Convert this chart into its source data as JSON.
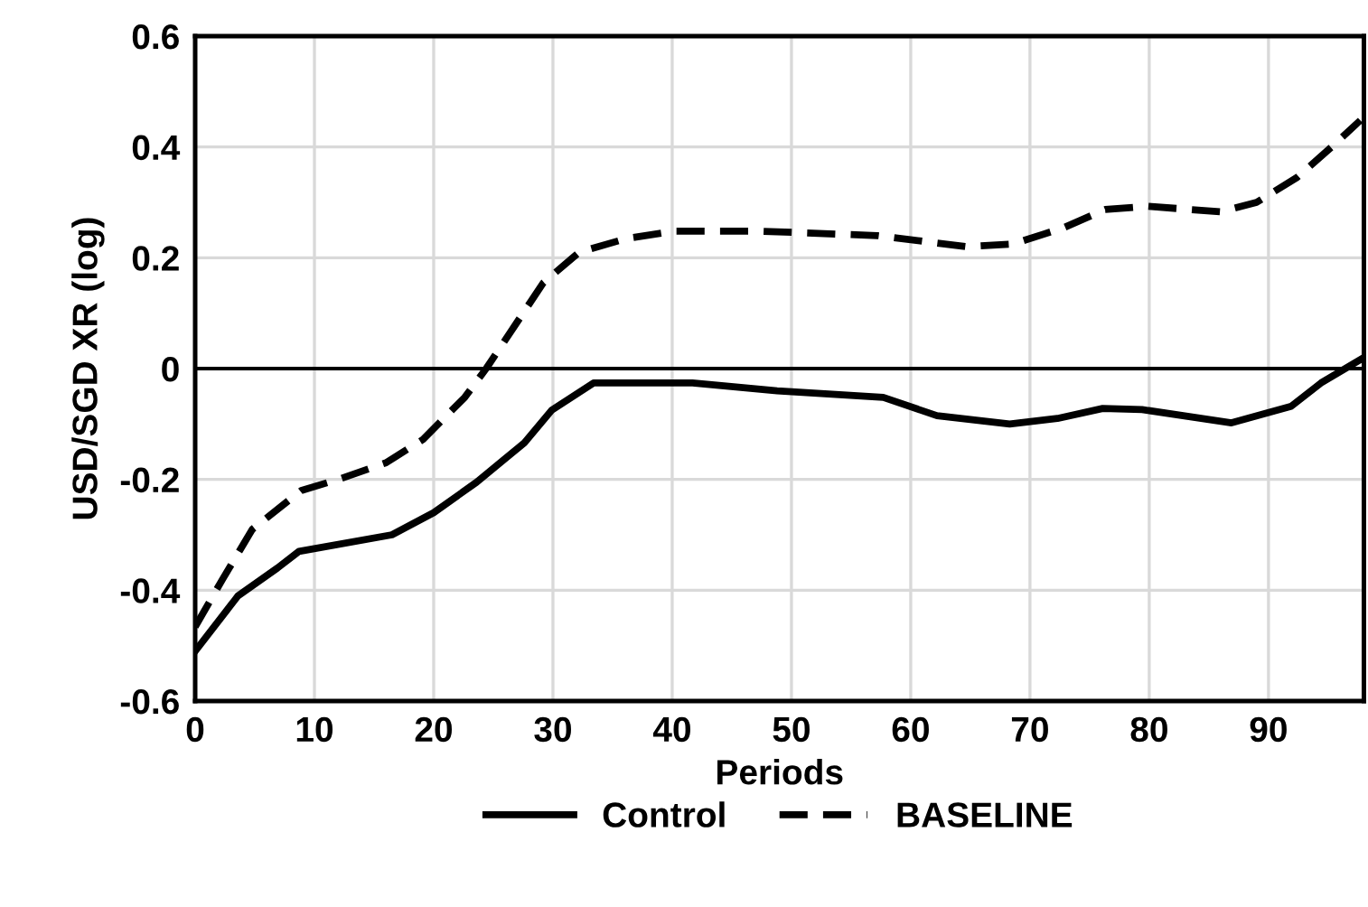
{
  "chart_data": {
    "type": "line",
    "xlabel": "Periods",
    "ylabel": "USD/SGD XR (log)",
    "series": [
      {
        "name": "Control",
        "color": "#000000",
        "line_style": "solid",
        "x": [
          0,
          3.6,
          6.9,
          8.7,
          16.5,
          20,
          23.6,
          27.6,
          29.9,
          33.4,
          41.7,
          48.8,
          57.7,
          62.2,
          68.3,
          72.3,
          76.1,
          79.4,
          86.9,
          91.9,
          94.4,
          97.7
        ],
        "values": [
          -0.51,
          -0.41,
          -0.36,
          -0.33,
          -0.3,
          -0.26,
          -0.205,
          -0.134,
          -0.075,
          -0.026,
          -0.026,
          -0.04,
          -0.052,
          -0.085,
          -0.1,
          -0.09,
          -0.072,
          -0.074,
          -0.098,
          -0.068,
          -0.026,
          0.016
        ]
      },
      {
        "name": "BASELINE",
        "color": "#000000",
        "line_style": "dashed",
        "x": [
          0,
          2.3,
          4.8,
          8.9,
          12,
          16,
          19.1,
          22.6,
          24.4,
          29.2,
          32.2,
          36.2,
          40.2,
          47.4,
          57.2,
          64.7,
          68.6,
          72.8,
          76.3,
          79.8,
          86,
          89,
          92.4,
          95.5,
          97.7
        ],
        "values": [
          -0.466,
          -0.38,
          -0.29,
          -0.22,
          -0.2,
          -0.17,
          -0.128,
          -0.052,
          0,
          0.155,
          0.21,
          0.235,
          0.248,
          0.248,
          0.24,
          0.22,
          0.225,
          0.254,
          0.287,
          0.293,
          0.283,
          0.3,
          0.345,
          0.404,
          0.448
        ]
      }
    ],
    "xlim": [
      0,
      98
    ],
    "xticks": [
      0,
      10,
      20,
      30,
      40,
      50,
      60,
      70,
      80,
      90
    ],
    "ylim": [
      -0.6,
      0.6
    ],
    "yticks": [
      -0.6,
      -0.4,
      -0.2,
      0,
      0.2,
      0.4,
      0.6
    ],
    "ref_lines": [
      {
        "axis": "y",
        "value": 0,
        "label": null,
        "color": "#000000"
      }
    ],
    "grid": true,
    "legend": "bottom",
    "marker": "none"
  }
}
